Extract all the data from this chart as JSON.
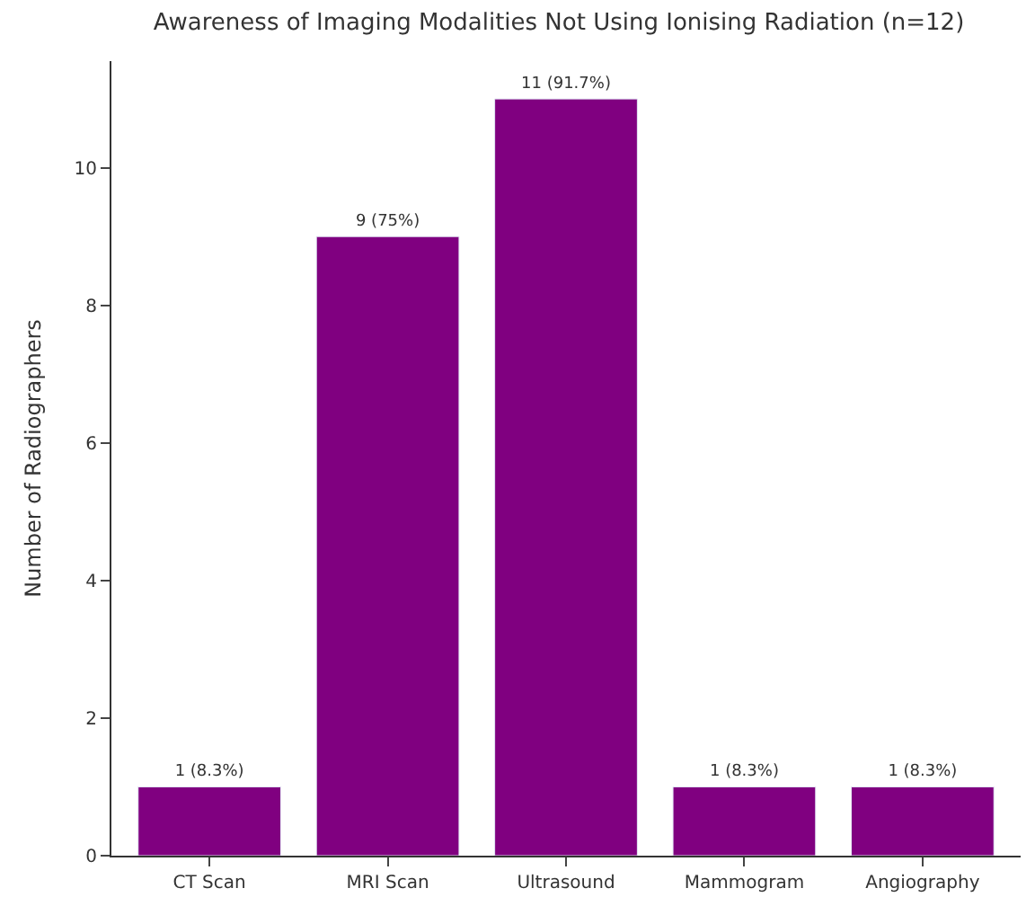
{
  "chart_data": {
    "type": "bar",
    "title": "Awareness of Imaging Modalities Not Using Ionising Radiation (n=12)",
    "ylabel": "Number of Radiographers",
    "categories": [
      "CT Scan",
      "MRI Scan",
      "Ultrasound",
      "Mammogram",
      "Angiography"
    ],
    "values": [
      1,
      9,
      11,
      1,
      1
    ],
    "color": "#800080",
    "value_labels": [
      "1 (8.3%)",
      "9 (75%)",
      "11 (91.7%)",
      "1 (8.3%)",
      "1 (8.3%)"
    ],
    "ylim": [
      0,
      11.55
    ],
    "yticks": [
      0,
      2,
      4,
      6,
      8,
      10
    ],
    "legend": false
  }
}
